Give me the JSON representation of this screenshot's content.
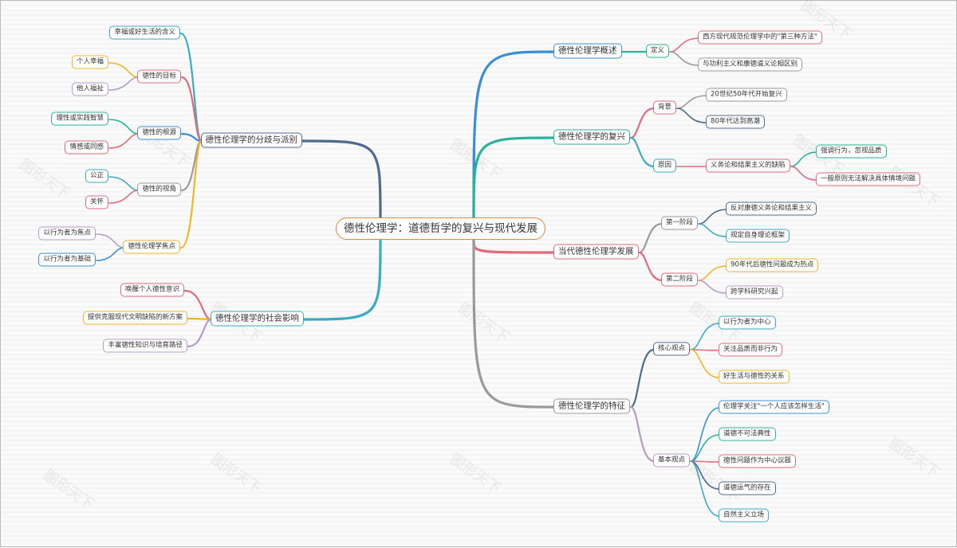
{
  "root": {
    "label": "德性伦理学：道德哲学的复兴与现代发展",
    "color": "#e8833a"
  },
  "watermark": "图形天下",
  "left": [
    {
      "label": "德性伦理学的分歧与派别",
      "color": "#4f6b8c",
      "children": [
        {
          "label": "幸福或好生活的含义",
          "color": "#3aabc4",
          "children": []
        },
        {
          "label": "德性的目标",
          "color": "#e06a7e",
          "children": [
            {
              "label": "个人幸福",
              "color": "#f5b324"
            },
            {
              "label": "他人福祉",
              "color": "#b49bc4"
            }
          ]
        },
        {
          "label": "德性的根源",
          "color": "#3a8fd6",
          "children": [
            {
              "label": "理性或实践智慧",
              "color": "#2bb39a"
            },
            {
              "label": "情感或同感",
              "color": "#e06a7e"
            }
          ]
        },
        {
          "label": "德性的视角",
          "color": "#9a9a9a",
          "children": [
            {
              "label": "公正",
              "color": "#3aabc4"
            },
            {
              "label": "关怀",
              "color": "#e06a7e"
            }
          ]
        },
        {
          "label": "德性伦理学焦点",
          "color": "#f5b324",
          "children": [
            {
              "label": "以行为者为焦点",
              "color": "#b49bc4"
            },
            {
              "label": "以行为者为基础",
              "color": "#3a8fd6"
            }
          ]
        }
      ]
    },
    {
      "label": "德性伦理学的社会影响",
      "color": "#3aabc4",
      "children": [
        {
          "label": "唤醒个人德性意识",
          "color": "#e06a7e",
          "children": []
        },
        {
          "label": "提供克服现代文明缺陷的新方案",
          "color": "#f5b324",
          "children": []
        },
        {
          "label": "丰富德性知识与培育路径",
          "color": "#b49bc4",
          "children": []
        }
      ]
    }
  ],
  "right": [
    {
      "label": "德性伦理学概述",
      "color": "#3a8fd6",
      "children": [
        {
          "label": "定义",
          "color": "#2bb39a",
          "children": [
            {
              "label": "西方现代规范伦理学中的\"第三种方法\"",
              "color": "#e06a7e",
              "children": []
            },
            {
              "label": "与功利主义和康德道义论相区别",
              "color": "#9a9a9a",
              "children": []
            }
          ]
        }
      ]
    },
    {
      "label": "德性伦理学的复兴",
      "color": "#2bb39a",
      "children": [
        {
          "label": "背景",
          "color": "#e06a7e",
          "children": [
            {
              "label": "20世纪50年代开始复兴",
              "color": "#9a9a9a",
              "children": []
            },
            {
              "label": "80年代达到高潮",
              "color": "#4f6b8c",
              "children": []
            }
          ]
        },
        {
          "label": "原因",
          "color": "#3aabc4",
          "children": [
            {
              "label": "义务论和结果主义的缺陷",
              "color": "#e06a7e",
              "children": [
                {
                  "label": "强调行为，忽视品质",
                  "color": "#2bb39a"
                },
                {
                  "label": "一般原则无法解决具体情境问题",
                  "color": "#e06a7e"
                }
              ]
            }
          ]
        }
      ]
    },
    {
      "label": "当代德性伦理学发展",
      "color": "#e06a7e",
      "children": [
        {
          "label": "第一阶段",
          "color": "#9a9a9a",
          "children": [
            {
              "label": "反对康德义务论和结果主义",
              "color": "#4f6b8c",
              "children": []
            },
            {
              "label": "规定自身理论框架",
              "color": "#3aabc4",
              "children": []
            }
          ]
        },
        {
          "label": "第二阶段",
          "color": "#e06a7e",
          "children": [
            {
              "label": "90年代后德性问题成为热点",
              "color": "#f5b324",
              "children": []
            },
            {
              "label": "跨学科研究兴起",
              "color": "#b49bc4",
              "children": []
            }
          ]
        }
      ]
    },
    {
      "label": "德性伦理学的特征",
      "color": "#9a9a9a",
      "children": [
        {
          "label": "核心观点",
          "color": "#4f6b8c",
          "children": [
            {
              "label": "以行为者为中心",
              "color": "#3aabc4",
              "children": []
            },
            {
              "label": "关注品质而非行为",
              "color": "#e06a7e",
              "children": []
            },
            {
              "label": "好生活与德性的关系",
              "color": "#f5b324",
              "children": []
            }
          ]
        },
        {
          "label": "基本观点",
          "color": "#b49bc4",
          "children": [
            {
              "label": "伦理学关注\"一个人应该怎样生活\"",
              "color": "#3a8fd6",
              "children": []
            },
            {
              "label": "道德不可法典性",
              "color": "#2bb39a",
              "children": []
            },
            {
              "label": "德性问题作为中心议题",
              "color": "#e06a7e",
              "children": []
            },
            {
              "label": "道德运气的存在",
              "color": "#4f6b8c",
              "children": []
            },
            {
              "label": "自然主义立场",
              "color": "#3aabc4",
              "children": []
            }
          ]
        }
      ]
    }
  ]
}
